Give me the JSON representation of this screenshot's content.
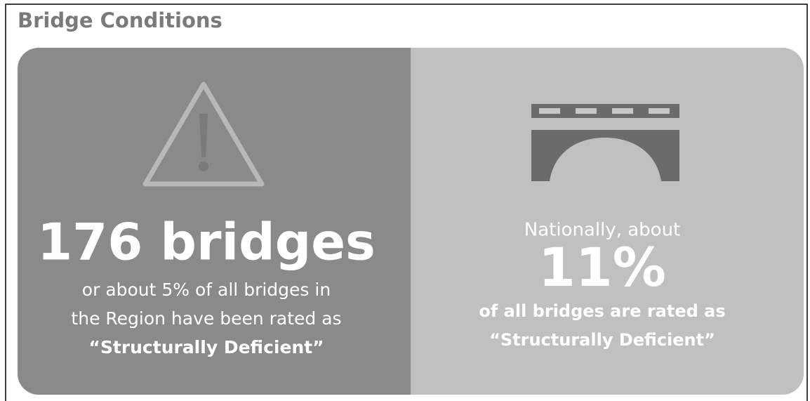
{
  "title": "Bridge Conditions",
  "regional": {
    "headline": "176 bridges",
    "lines": [
      "or about 5% of all bridges in",
      "the Region have been rated as",
      "“Structurally Deficient”"
    ]
  },
  "national": {
    "lead": "Nationally, about",
    "figure": "11%",
    "lines": [
      "of all bridges are rated as",
      "“Structurally Deficient”"
    ]
  }
}
